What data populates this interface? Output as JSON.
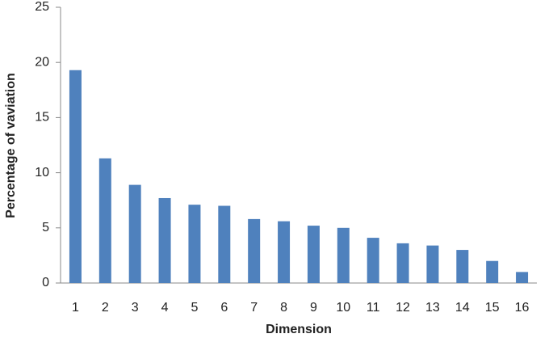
{
  "chart_data": {
    "type": "bar",
    "x_label": "Dimension",
    "y_label": "Percentage of vaviation",
    "categories": [
      "1",
      "2",
      "3",
      "4",
      "5",
      "6",
      "7",
      "8",
      "9",
      "10",
      "11",
      "12",
      "13",
      "14",
      "15",
      "16"
    ],
    "values": [
      19.3,
      11.3,
      8.9,
      7.7,
      7.1,
      7.0,
      5.8,
      5.6,
      5.2,
      5.0,
      4.1,
      3.6,
      3.4,
      3.0,
      2.0,
      1.0
    ],
    "color": "#4f81bd",
    "ylim": [
      0,
      25
    ],
    "yticks": [
      0,
      5,
      10,
      15,
      20,
      25
    ],
    "grid": false
  }
}
